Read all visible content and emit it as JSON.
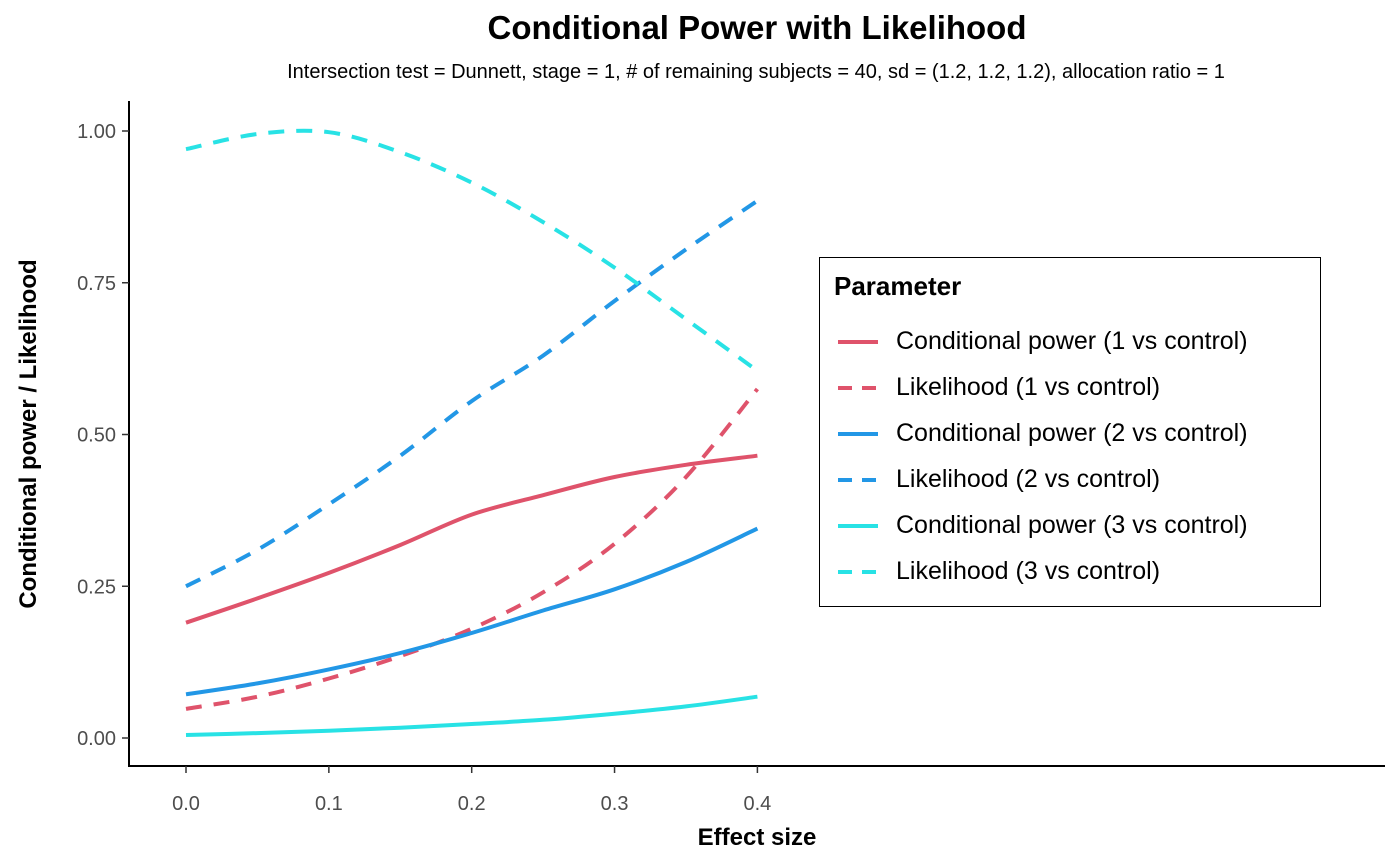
{
  "chart_data": {
    "type": "line",
    "title": "Conditional Power with Likelihood",
    "subtitle": "Intersection test = Dunnett, stage = 1, # of remaining subjects = 40, sd = (1.2, 1.2, 1.2), allocation ratio = 1",
    "xlabel": "Effect size",
    "ylabel": "Conditional power / Likelihood",
    "xlim": [
      -0.02,
      0.42
    ],
    "ylim": [
      -0.045,
      1.05
    ],
    "x_ticks": [
      "0.0",
      "0.1",
      "0.2",
      "0.3",
      "0.4"
    ],
    "y_ticks": [
      "0.00",
      "0.25",
      "0.50",
      "0.75",
      "1.00"
    ],
    "grid": false,
    "legend": {
      "title": "Parameter",
      "position": "right"
    },
    "x": [
      0.0,
      0.05,
      0.1,
      0.15,
      0.2,
      0.25,
      0.3,
      0.35,
      0.4
    ],
    "series": [
      {
        "name": "Conditional power (1 vs control)",
        "color": "#DF536B",
        "dash": "solid",
        "values": [
          0.19,
          0.23,
          0.272,
          0.318,
          0.368,
          0.4,
          0.43,
          0.45,
          0.465
        ]
      },
      {
        "name": "Likelihood (1 vs control)",
        "color": "#DF536B",
        "dash": "dashed",
        "values": [
          0.048,
          0.068,
          0.098,
          0.135,
          0.18,
          0.24,
          0.32,
          0.43,
          0.575
        ]
      },
      {
        "name": "Conditional power (2 vs control)",
        "color": "#2297E6",
        "dash": "solid",
        "values": [
          0.072,
          0.09,
          0.113,
          0.14,
          0.173,
          0.21,
          0.245,
          0.29,
          0.345
        ]
      },
      {
        "name": "Likelihood (2 vs control)",
        "color": "#2297E6",
        "dash": "dashed",
        "values": [
          0.25,
          0.31,
          0.385,
          0.465,
          0.555,
          0.63,
          0.72,
          0.805,
          0.885
        ]
      },
      {
        "name": "Conditional power (3 vs control)",
        "color": "#28E2E5",
        "dash": "solid",
        "values": [
          0.005,
          0.008,
          0.012,
          0.017,
          0.023,
          0.03,
          0.04,
          0.052,
          0.068
        ]
      },
      {
        "name": "Likelihood (3 vs control)",
        "color": "#28E2E5",
        "dash": "dashed",
        "values": [
          0.97,
          0.995,
          0.998,
          0.965,
          0.915,
          0.85,
          0.775,
          0.69,
          0.605
        ]
      }
    ]
  }
}
